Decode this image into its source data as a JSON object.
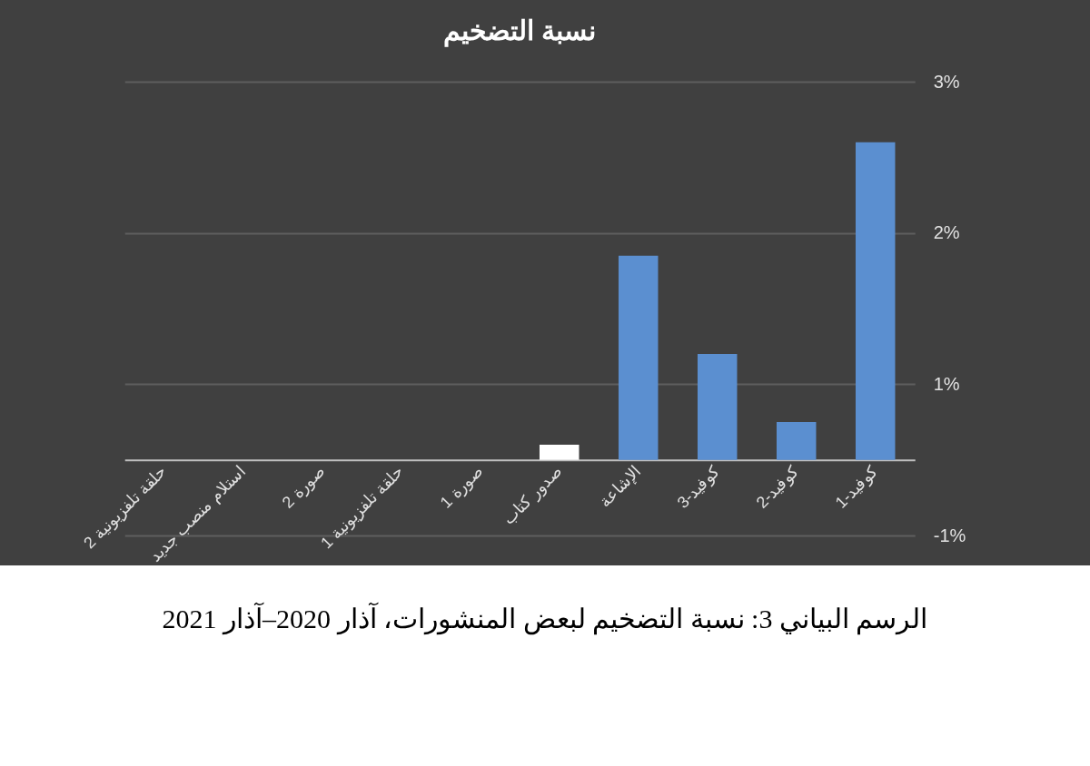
{
  "chart_data": {
    "type": "bar",
    "title": "نسبة التضخيم",
    "categories": [
      "حلقة تلفزيونية 2",
      "استلام منصب جديد",
      "صورة 2",
      "حلقة تلفزيونية 1",
      "صورة 1",
      "صدور كتاب",
      "الإشاعة",
      "كوفيد-3",
      "كوفيد-2",
      "كوفيد-1"
    ],
    "values": [
      0,
      0,
      0,
      0,
      0,
      0.1,
      1.35,
      0.7,
      0.25,
      2.1
    ],
    "colors": [
      "#5b8fd0",
      "#5b8fd0",
      "#5b8fd0",
      "#5b8fd0",
      "#5b8fd0",
      "#ffffff",
      "#5b8fd0",
      "#5b8fd0",
      "#5b8fd0",
      "#5b8fd0"
    ],
    "ylim": [
      -0.5,
      2.5
    ],
    "yticks": [
      {
        "value": -0.5,
        "label": "-1%"
      },
      {
        "value": 0.5,
        "label": "1%"
      },
      {
        "value": 1.5,
        "label": "2%"
      },
      {
        "value": 2.5,
        "label": "3%"
      }
    ],
    "grid": "y",
    "annotations": [
      "الرسم البياني 3: نسبة التضخيم لبعض المنشورات، آذار 2020–آذار 2021"
    ]
  }
}
